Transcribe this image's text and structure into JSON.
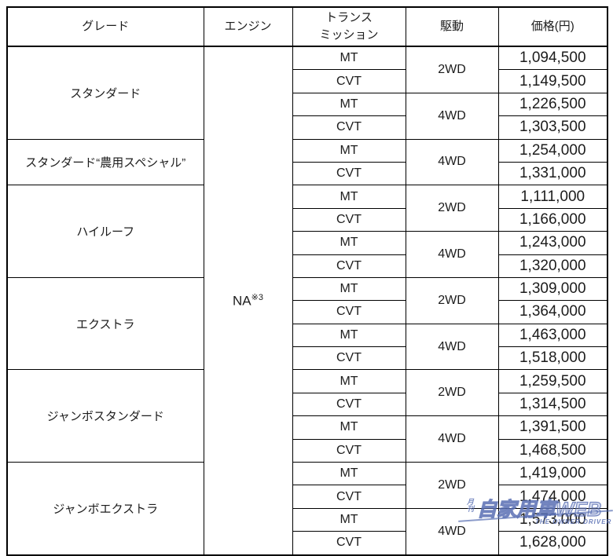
{
  "header": {
    "grade": "グレード",
    "engine": "エンジン",
    "transmission_line1": "トランス",
    "transmission_line2": "ミッション",
    "drive": "駆動",
    "price": "価格(円)"
  },
  "engine": {
    "label": "NA",
    "note": "※3"
  },
  "groups": [
    {
      "grade": "スタンダード",
      "drives": [
        {
          "drive": "2WD",
          "rows": [
            {
              "trans": "MT",
              "price": "1,094,500"
            },
            {
              "trans": "CVT",
              "price": "1,149,500"
            }
          ]
        },
        {
          "drive": "4WD",
          "rows": [
            {
              "trans": "MT",
              "price": "1,226,500"
            },
            {
              "trans": "CVT",
              "price": "1,303,500"
            }
          ]
        }
      ]
    },
    {
      "grade": "スタンダード“農用スペシャル”",
      "drives": [
        {
          "drive": "4WD",
          "rows": [
            {
              "trans": "MT",
              "price": "1,254,000"
            },
            {
              "trans": "CVT",
              "price": "1,331,000"
            }
          ]
        }
      ]
    },
    {
      "grade": "ハイルーフ",
      "drives": [
        {
          "drive": "2WD",
          "rows": [
            {
              "trans": "MT",
              "price": "1,111,000"
            },
            {
              "trans": "CVT",
              "price": "1,166,000"
            }
          ]
        },
        {
          "drive": "4WD",
          "rows": [
            {
              "trans": "MT",
              "price": "1,243,000"
            },
            {
              "trans": "CVT",
              "price": "1,320,000"
            }
          ]
        }
      ]
    },
    {
      "grade": "エクストラ",
      "drives": [
        {
          "drive": "2WD",
          "rows": [
            {
              "trans": "MT",
              "price": "1,309,000"
            },
            {
              "trans": "CVT",
              "price": "1,364,000"
            }
          ]
        },
        {
          "drive": "4WD",
          "rows": [
            {
              "trans": "MT",
              "price": "1,463,000"
            },
            {
              "trans": "CVT",
              "price": "1,518,000"
            }
          ]
        }
      ]
    },
    {
      "grade": "ジャンボスタンダード",
      "drives": [
        {
          "drive": "2WD",
          "rows": [
            {
              "trans": "MT",
              "price": "1,259,500"
            },
            {
              "trans": "CVT",
              "price": "1,314,500"
            }
          ]
        },
        {
          "drive": "4WD",
          "rows": [
            {
              "trans": "MT",
              "price": "1,391,500"
            },
            {
              "trans": "CVT",
              "price": "1,468,500"
            }
          ]
        }
      ]
    },
    {
      "grade": "ジャンボエクストラ",
      "drives": [
        {
          "drive": "2WD",
          "rows": [
            {
              "trans": "MT",
              "price": "1,419,000"
            },
            {
              "trans": "CVT",
              "price": "1,474,000"
            }
          ]
        },
        {
          "drive": "4WD",
          "rows": [
            {
              "trans": "MT",
              "price": "1,573,000"
            },
            {
              "trans": "CVT",
              "price": "1,628,000"
            }
          ]
        }
      ]
    }
  ],
  "watermark": {
    "small": "月刊",
    "main": "自家用車WEB",
    "sub": "THE OWNER DRIVER"
  },
  "colors": {
    "watermark": "#5a70b4",
    "border": "#000000",
    "text": "#1c1c1c"
  }
}
